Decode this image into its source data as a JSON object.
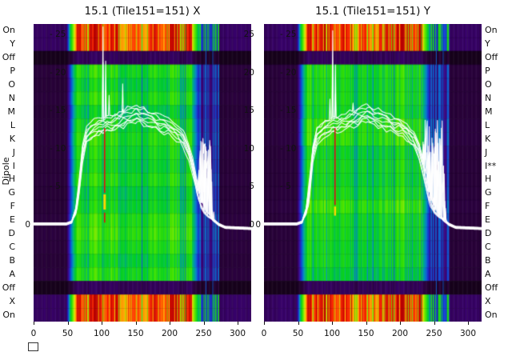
{
  "figure": {
    "y_axis_label": "Dipole",
    "background": "#ffffff"
  },
  "panels": [
    {
      "title": "15.1 (Tile151=151) X",
      "dipole_label_side": "left",
      "dipole_labels": [
        "On",
        "Y",
        "Off",
        "P",
        "O",
        "N",
        "M",
        "L",
        "K",
        "J",
        "I",
        "H",
        "G",
        "F",
        "E",
        "D",
        "C",
        "B",
        "A",
        "Off",
        "X",
        "On"
      ],
      "inner_scale_labels": [
        {
          "text": "- 25",
          "value": 25
        },
        {
          "text": "- 20",
          "value": 20
        },
        {
          "text": "- 15",
          "value": 15
        },
        {
          "text": "- 10",
          "value": 10
        },
        {
          "text": "- 5",
          "value": 5
        }
      ],
      "outer_zero_label": "0",
      "right_scale_labels": [
        {
          "text": "25",
          "value": 25
        },
        {
          "text": "20",
          "value": 20
        },
        {
          "text": "15",
          "value": 15
        },
        {
          "text": "10",
          "value": 10
        },
        {
          "text": "5",
          "value": 5
        },
        {
          "text": "0",
          "value": 0
        }
      ],
      "x_tick_labels": [
        {
          "text": "0",
          "value": 0
        },
        {
          "text": "50",
          "value": 50
        },
        {
          "text": "100",
          "value": 100
        },
        {
          "text": "150",
          "value": 150
        },
        {
          "text": "200",
          "value": 200
        },
        {
          "text": "250",
          "value": 250
        },
        {
          "text": "300",
          "value": 300
        }
      ]
    },
    {
      "title": "15.1 (Tile151=151) Y",
      "dipole_label_side": "right",
      "dipole_labels": [
        "On",
        "Y",
        "Off",
        "P",
        "O",
        "N",
        "M",
        "L",
        "K",
        "J",
        "I**",
        "H",
        "G",
        "F",
        "E",
        "D",
        "C",
        "B",
        "A",
        "Off",
        "X",
        "On"
      ],
      "inner_scale_labels": [
        {
          "text": "- 25",
          "value": 25
        },
        {
          "text": "- 20",
          "value": 20
        },
        {
          "text": "- 15",
          "value": 15
        },
        {
          "text": "- 10",
          "value": 10
        },
        {
          "text": "- 5",
          "value": 5
        }
      ],
      "outer_zero_label": "0",
      "right_scale_labels": [],
      "x_tick_labels": [
        {
          "text": "0",
          "value": 0
        },
        {
          "text": "50",
          "value": 50
        },
        {
          "text": "100",
          "value": 100
        },
        {
          "text": "150",
          "value": 150
        },
        {
          "text": "200",
          "value": 200
        },
        {
          "text": "250",
          "value": 250
        },
        {
          "text": "300",
          "value": 300
        }
      ]
    }
  ],
  "chart_data": {
    "type": "heatmap",
    "subtype": "per-dipole spectrogram with white bandpass line overlay",
    "titles": [
      "15.1 (Tile151=151) X",
      "15.1 (Tile151=151) Y"
    ],
    "x_axis": {
      "range": [
        0,
        320
      ],
      "ticks": [
        0,
        50,
        100,
        150,
        200,
        250,
        300
      ]
    },
    "y_axis": {
      "label": "Dipole",
      "rows": [
        "On",
        "Y",
        "Off",
        "P",
        "O",
        "N",
        "M",
        "L",
        "K",
        "J",
        "I",
        "H",
        "G",
        "F",
        "E",
        "D",
        "C",
        "B",
        "A",
        "Off",
        "X",
        "On"
      ]
    },
    "power_scale": {
      "ticks": [
        25,
        20,
        15,
        10,
        5,
        0
      ]
    },
    "row_kinds": [
      "hot",
      "hot",
      "off",
      "norm",
      "norm",
      "norm",
      "norm",
      "norm",
      "norm",
      "norm",
      "norm",
      "norm",
      "norm",
      "norm",
      "norm",
      "norm",
      "norm",
      "norm",
      "norm",
      "off",
      "hot",
      "hot"
    ],
    "passband_channels": [
      55,
      238
    ],
    "stripe_region_channels": [
      244,
      272
    ],
    "full_height_blue_lines": [
      253,
      263
    ],
    "bandpass_envelope_db": [
      [
        0,
        0.25
      ],
      [
        48,
        0.25
      ],
      [
        56,
        0.5
      ],
      [
        62,
        2.2
      ],
      [
        67,
        6
      ],
      [
        72,
        10.5
      ],
      [
        78,
        12.8
      ],
      [
        88,
        13.6
      ],
      [
        100,
        14.1
      ],
      [
        115,
        14.4
      ],
      [
        128,
        14.9
      ],
      [
        140,
        15.3
      ],
      [
        152,
        15.8
      ],
      [
        162,
        15.3
      ],
      [
        172,
        14.9
      ],
      [
        185,
        14.4
      ],
      [
        200,
        13.9
      ],
      [
        210,
        13.3
      ],
      [
        220,
        12.3
      ],
      [
        228,
        10.8
      ],
      [
        234,
        8.8
      ],
      [
        240,
        6.2
      ],
      [
        246,
        3.8
      ],
      [
        251,
        2.4
      ],
      [
        257,
        1.5
      ],
      [
        264,
        0.8
      ],
      [
        272,
        0.2
      ],
      [
        282,
        -0.2
      ],
      [
        320,
        -0.35
      ]
    ],
    "overlay": {
      "lines": 8,
      "color": "#ffffff"
    },
    "colormap": [
      [
        0,
        18,
        2,
        20
      ],
      [
        0.07,
        42,
        2,
        60
      ],
      [
        0.14,
        60,
        2,
        120
      ],
      [
        0.2,
        40,
        20,
        170
      ],
      [
        0.26,
        20,
        60,
        210
      ],
      [
        0.33,
        0,
        130,
        200
      ],
      [
        0.4,
        0,
        180,
        120
      ],
      [
        0.48,
        0,
        205,
        40
      ],
      [
        0.58,
        60,
        225,
        0
      ],
      [
        0.68,
        150,
        235,
        0
      ],
      [
        0.76,
        240,
        220,
        0
      ],
      [
        0.84,
        255,
        150,
        0
      ],
      [
        0.91,
        255,
        40,
        0
      ],
      [
        1,
        185,
        0,
        0
      ]
    ],
    "panels": [
      {
        "pol": "X",
        "seed": 1,
        "center_spikes": [
          {
            "ch": 102,
            "db": 26
          },
          {
            "ch": 106,
            "db": 21.5
          },
          {
            "ch": 111,
            "db": 17
          },
          {
            "ch": 131,
            "db": 18.5
          }
        ],
        "post_spike_range": [
          239,
          266
        ],
        "post_spike_max_db": 11.5,
        "rfi_marks": [
          {
            "ch": 104,
            "from_db": 12.7,
            "to_db": 4.2,
            "color": "#e01010",
            "w": 1.6
          },
          {
            "ch": 104,
            "from_db": 4.0,
            "to_db": 2.0,
            "color": "#ffd400",
            "w": 3
          },
          {
            "ch": 104,
            "from_db": 1.6,
            "to_db": 0.3,
            "color": "#e01010",
            "w": 1.6
          }
        ],
        "flagged_dipoles": []
      },
      {
        "pol": "Y",
        "seed": 7,
        "center_spikes": [
          {
            "ch": 101,
            "db": 25.5
          },
          {
            "ch": 105,
            "db": 21
          },
          {
            "ch": 97,
            "db": 16.5
          },
          {
            "ch": 131,
            "db": 16
          }
        ],
        "post_spike_range": [
          228,
          268
        ],
        "post_spike_max_db": 14,
        "rfi_marks": [
          {
            "ch": 104,
            "from_db": 12.7,
            "to_db": 2.6,
            "color": "#e01010",
            "w": 1.6
          },
          {
            "ch": 104,
            "from_db": 2.4,
            "to_db": 1.2,
            "color": "#ffd400",
            "w": 2.4
          }
        ],
        "flagged_dipoles": [
          "I"
        ]
      }
    ]
  }
}
